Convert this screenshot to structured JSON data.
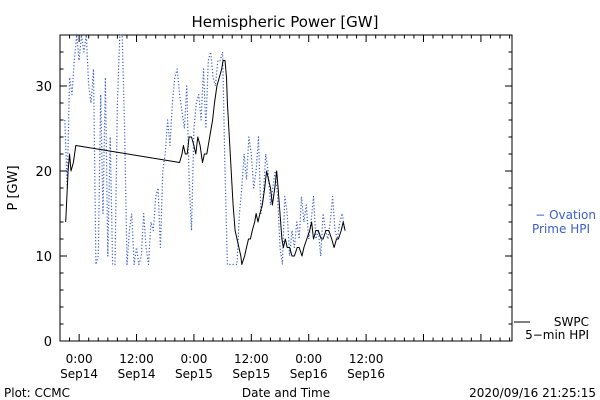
{
  "chart_data": {
    "type": "line",
    "title": "Hemispheric Power [GW]",
    "xlabel": "Date and Time",
    "ylabel": "P [GW]",
    "ylim": [
      0,
      36
    ],
    "yticks": [
      0,
      10,
      20,
      30
    ],
    "xlim_hours": [
      -4,
      90.5
    ],
    "x_ticks": [
      {
        "h": 0,
        "time": "0:00",
        "date": "Sep14"
      },
      {
        "h": 12,
        "time": "12:00",
        "date": "Sep14"
      },
      {
        "h": 24,
        "time": "0:00",
        "date": "Sep15"
      },
      {
        "h": 36,
        "time": "12:00",
        "date": "Sep15"
      },
      {
        "h": 48,
        "time": "0:00",
        "date": "Sep16"
      },
      {
        "h": 60,
        "time": "12:00",
        "date": "Sep16"
      }
    ],
    "x_minor_step_hours": 2,
    "grid": false,
    "series": [
      {
        "name": "SWPC 5-min HPI",
        "label_lines": [
          "SWPC",
          "5−min HPI"
        ],
        "color": "#000000",
        "style": "solid",
        "points": [
          [
            -2.8,
            14
          ],
          [
            -2.3,
            20
          ],
          [
            -2,
            22
          ],
          [
            -1.7,
            20
          ],
          [
            -1.2,
            21
          ],
          [
            -0.7,
            23
          ],
          [
            21,
            21
          ],
          [
            21.5,
            22
          ],
          [
            21.8,
            23
          ],
          [
            22.2,
            22
          ],
          [
            22.6,
            22
          ],
          [
            23,
            24
          ],
          [
            23.5,
            24
          ],
          [
            24,
            23
          ],
          [
            24.4,
            22
          ],
          [
            24.8,
            24
          ],
          [
            25.3,
            23
          ],
          [
            25.8,
            21
          ],
          [
            26.2,
            22
          ],
          [
            26.7,
            22
          ],
          [
            27.3,
            24
          ],
          [
            27.9,
            26
          ],
          [
            28.3,
            28
          ],
          [
            28.8,
            30
          ],
          [
            29.3,
            31
          ],
          [
            29.8,
            32
          ],
          [
            30.1,
            33
          ],
          [
            30.5,
            33
          ],
          [
            30.8,
            31
          ],
          [
            31,
            28
          ],
          [
            31.4,
            24
          ],
          [
            31.8,
            20
          ],
          [
            32.2,
            16
          ],
          [
            32.6,
            13
          ],
          [
            33,
            12
          ],
          [
            33.4,
            11
          ],
          [
            33.8,
            10
          ],
          [
            34,
            9
          ],
          [
            34.6,
            10
          ],
          [
            35,
            11
          ],
          [
            35.4,
            12
          ],
          [
            35.8,
            12
          ],
          [
            36.2,
            13
          ],
          [
            36.7,
            14
          ],
          [
            37,
            15
          ],
          [
            37.4,
            14
          ],
          [
            37.8,
            15
          ],
          [
            38.3,
            16
          ],
          [
            38.8,
            18
          ],
          [
            39.2,
            20
          ],
          [
            39.6,
            19
          ],
          [
            40,
            18
          ],
          [
            40.4,
            16
          ],
          [
            40.9,
            18
          ],
          [
            41.3,
            20
          ],
          [
            41.6,
            18
          ],
          [
            42,
            15
          ],
          [
            42.4,
            12
          ],
          [
            42.7,
            11
          ],
          [
            43.1,
            12
          ],
          [
            43.5,
            11
          ],
          [
            44,
            11
          ],
          [
            44.5,
            10
          ],
          [
            45,
            10
          ],
          [
            45.6,
            11
          ],
          [
            46,
            11
          ],
          [
            46.6,
            10
          ],
          [
            47,
            11
          ],
          [
            47.6,
            12
          ],
          [
            48.2,
            13
          ],
          [
            48.6,
            14
          ],
          [
            49,
            12
          ],
          [
            49.5,
            13
          ],
          [
            50,
            13
          ],
          [
            50.6,
            12
          ],
          [
            51,
            12
          ],
          [
            51.6,
            13
          ],
          [
            52.2,
            13
          ],
          [
            52.8,
            12
          ],
          [
            53.3,
            11
          ],
          [
            53.8,
            12
          ],
          [
            54.2,
            12
          ],
          [
            54.8,
            13
          ],
          [
            55.2,
            14
          ],
          [
            55.6,
            13
          ]
        ]
      },
      {
        "name": "Ovation Prime HPI",
        "label_lines": [
          "− Ovation",
          "Prime HPI"
        ],
        "color": "#3a5fcd",
        "style": "dotted",
        "points": [
          [
            -3,
            26
          ],
          [
            -2.5,
            18
          ],
          [
            -2,
            31
          ],
          [
            -1.5,
            29
          ],
          [
            -1,
            33
          ],
          [
            -0.5,
            36
          ],
          [
            0,
            33
          ],
          [
            0.5,
            36
          ],
          [
            1,
            34
          ],
          [
            1.5,
            36
          ],
          [
            2,
            30
          ],
          [
            2.5,
            28
          ],
          [
            3,
            32
          ],
          [
            3.5,
            9
          ],
          [
            4,
            10
          ],
          [
            4.5,
            29
          ],
          [
            5,
            15
          ],
          [
            5.5,
            31
          ],
          [
            6,
            10
          ],
          [
            6.5,
            24
          ],
          [
            7,
            9
          ],
          [
            7.5,
            9
          ],
          [
            8,
            28
          ],
          [
            8.5,
            36
          ],
          [
            9,
            36
          ],
          [
            9.5,
            25
          ],
          [
            10,
            9
          ],
          [
            10.5,
            13
          ],
          [
            11,
            15
          ],
          [
            11.5,
            9
          ],
          [
            12,
            11
          ],
          [
            12.5,
            9
          ],
          [
            13,
            10
          ],
          [
            13.5,
            15
          ],
          [
            14,
            11
          ],
          [
            14.5,
            9
          ],
          [
            15,
            14
          ],
          [
            15.5,
            13
          ],
          [
            16,
            17
          ],
          [
            16.5,
            18
          ],
          [
            17,
            11
          ],
          [
            17.5,
            20
          ],
          [
            18,
            22
          ],
          [
            18.5,
            26
          ],
          [
            19,
            23
          ],
          [
            19.5,
            28
          ],
          [
            20,
            31
          ],
          [
            20.5,
            32
          ],
          [
            21,
            29
          ],
          [
            21.5,
            27
          ],
          [
            22,
            25
          ],
          [
            22.5,
            30
          ],
          [
            23,
            19
          ],
          [
            23.5,
            13
          ],
          [
            24,
            25
          ],
          [
            24.5,
            28
          ],
          [
            25,
            29
          ],
          [
            25.5,
            26
          ],
          [
            26,
            32
          ],
          [
            26.5,
            25
          ],
          [
            27,
            33
          ],
          [
            27.5,
            34
          ],
          [
            28,
            31
          ],
          [
            28.5,
            30
          ],
          [
            29,
            33
          ],
          [
            29.5,
            33
          ],
          [
            30,
            34
          ],
          [
            30.5,
            20
          ],
          [
            31,
            9
          ],
          [
            31.5,
            9
          ],
          [
            32,
            9
          ],
          [
            32.5,
            9
          ],
          [
            33,
            9
          ],
          [
            33.5,
            15
          ],
          [
            34,
            18
          ],
          [
            34.5,
            22
          ],
          [
            35,
            19
          ],
          [
            35.5,
            24
          ],
          [
            36,
            22
          ],
          [
            36.5,
            18
          ],
          [
            37,
            20
          ],
          [
            37.5,
            24
          ],
          [
            38,
            15
          ],
          [
            38.5,
            17
          ],
          [
            39,
            22
          ],
          [
            39.5,
            20
          ],
          [
            40,
            16
          ],
          [
            40.5,
            18
          ],
          [
            41,
            20
          ],
          [
            41.5,
            17
          ],
          [
            42,
            11
          ],
          [
            42.5,
            9
          ],
          [
            43,
            17
          ],
          [
            43.5,
            15
          ],
          [
            44,
            10
          ],
          [
            44.5,
            13
          ],
          [
            45,
            11
          ],
          [
            45.5,
            14
          ],
          [
            46,
            12
          ],
          [
            46.5,
            17
          ],
          [
            47,
            14
          ],
          [
            47.5,
            16
          ],
          [
            48,
            12
          ],
          [
            48.5,
            14
          ],
          [
            49,
            17
          ],
          [
            49.5,
            12
          ],
          [
            50,
            13
          ],
          [
            50.5,
            10
          ],
          [
            51,
            15
          ],
          [
            51.5,
            13
          ],
          [
            52,
            12
          ],
          [
            52.5,
            14
          ],
          [
            53,
            17
          ],
          [
            53.5,
            13
          ],
          [
            54,
            12
          ],
          [
            54.5,
            14
          ],
          [
            55,
            15
          ],
          [
            55.5,
            13
          ]
        ]
      }
    ],
    "plot_credit": "Plot: CCMC",
    "timestamp": "2020/09/16 21:25:15"
  }
}
